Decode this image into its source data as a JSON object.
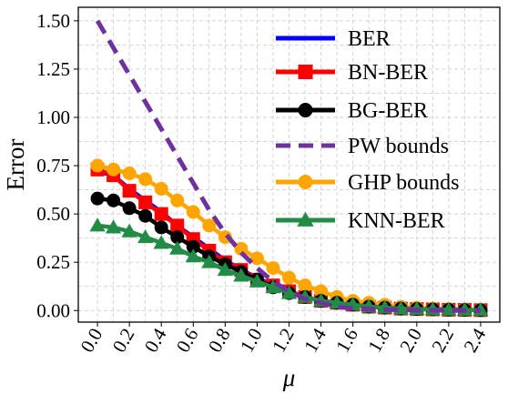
{
  "chart_data": {
    "type": "line",
    "xlabel": "μ",
    "ylabel": "Error",
    "xlim": [
      -0.12,
      2.52
    ],
    "ylim": [
      -0.06,
      1.57
    ],
    "grid": true,
    "legend_position": "top-right",
    "x_ticks": [
      "0.0",
      "0.2",
      "0.4",
      "0.6",
      "0.8",
      "1.0",
      "1.2",
      "1.4",
      "1.6",
      "1.8",
      "2.0",
      "2.2",
      "2.4"
    ],
    "y_ticks": [
      "0.00",
      "0.25",
      "0.50",
      "0.75",
      "1.00",
      "1.25",
      "1.50"
    ],
    "x": [
      0.0,
      0.1,
      0.2,
      0.3,
      0.4,
      0.5,
      0.6,
      0.7,
      0.8,
      0.9,
      1.0,
      1.1,
      1.2,
      1.3,
      1.4,
      1.5,
      1.6,
      1.7,
      1.8,
      1.9,
      2.0,
      2.1,
      2.2,
      2.3,
      2.4
    ],
    "series": [
      {
        "name": "BER",
        "color": "#0000ff",
        "line": "solid",
        "marker": "none",
        "values": [
          0.72,
          0.7,
          0.63,
          0.57,
          0.51,
          0.44,
          0.38,
          0.32,
          0.26,
          0.21,
          0.17,
          0.13,
          0.1,
          0.07,
          0.05,
          0.04,
          0.03,
          0.02,
          0.015,
          0.01,
          0.008,
          0.006,
          0.004,
          0.003,
          0.002
        ]
      },
      {
        "name": "BN-BER",
        "color": "#ff0000",
        "line": "solid",
        "marker": "square",
        "values": [
          0.73,
          0.7,
          0.62,
          0.56,
          0.5,
          0.44,
          0.37,
          0.31,
          0.25,
          0.21,
          0.16,
          0.13,
          0.1,
          0.07,
          0.05,
          0.04,
          0.03,
          0.02,
          0.015,
          0.01,
          0.008,
          0.006,
          0.004,
          0.003,
          0.002
        ]
      },
      {
        "name": "BG-BER",
        "color": "#000000",
        "line": "solid",
        "marker": "circle",
        "values": [
          0.58,
          0.57,
          0.53,
          0.49,
          0.43,
          0.38,
          0.33,
          0.28,
          0.24,
          0.2,
          0.16,
          0.12,
          0.09,
          0.07,
          0.05,
          0.04,
          0.03,
          0.02,
          0.015,
          0.01,
          0.008,
          0.006,
          0.004,
          0.003,
          0.002
        ]
      },
      {
        "name": "PW bounds",
        "color": "#7030a0",
        "line": "dashed",
        "marker": "none",
        "values": [
          1.5,
          1.36,
          1.22,
          1.08,
          0.94,
          0.8,
          0.66,
          0.52,
          0.4,
          0.3,
          0.22,
          0.15,
          0.1,
          0.06,
          0.04,
          0.02,
          0.01,
          0.008,
          0.005,
          0.003,
          0.002,
          0.001,
          0.001,
          0.0,
          0.0
        ]
      },
      {
        "name": "GHP bounds",
        "color": "#ffa500",
        "line": "solid",
        "marker": "circle",
        "values": [
          0.75,
          0.73,
          0.71,
          0.68,
          0.63,
          0.57,
          0.51,
          0.44,
          0.38,
          0.32,
          0.27,
          0.22,
          0.17,
          0.13,
          0.1,
          0.07,
          0.05,
          0.04,
          0.03,
          0.02,
          0.015,
          0.01,
          0.008,
          0.006,
          0.005
        ]
      },
      {
        "name": "KNN-BER",
        "color": "#228b46",
        "line": "solid",
        "marker": "triangle",
        "values": [
          0.44,
          0.43,
          0.41,
          0.38,
          0.35,
          0.32,
          0.28,
          0.25,
          0.21,
          0.18,
          0.15,
          0.12,
          0.09,
          0.07,
          0.05,
          0.04,
          0.03,
          0.02,
          0.015,
          0.01,
          0.008,
          0.006,
          0.004,
          0.003,
          0.002
        ]
      }
    ]
  }
}
